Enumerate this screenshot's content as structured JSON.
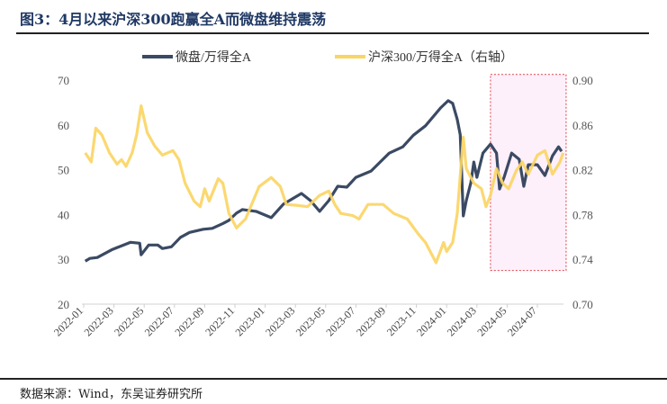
{
  "header": {
    "title": "图3：4月以来沪深300跑赢全A而微盘维持震荡"
  },
  "footer": {
    "source": "数据来源：Wind，东吴证券研究所"
  },
  "chart_data": {
    "type": "line",
    "title": "图3：4月以来沪深300跑赢全A而微盘维持震荡",
    "x_unit": "months since 2022-01",
    "x_tick_labels": [
      "2022-01",
      "2022-03",
      "2022-05",
      "2022-07",
      "2022-09",
      "2022-11",
      "2023-01",
      "2023-03",
      "2023-05",
      "2023-07",
      "2023-09",
      "2023-11",
      "2024-01",
      "2024-03",
      "2024-05",
      "2024-07"
    ],
    "y_left": {
      "ylim": [
        20,
        70
      ],
      "ticks": [
        "20",
        "30",
        "40",
        "50",
        "60",
        "70"
      ]
    },
    "y_right": {
      "ylim": [
        0.7,
        0.9
      ],
      "ticks": [
        "0.70",
        "0.74",
        "0.78",
        "0.82",
        "0.86",
        "0.90"
      ]
    },
    "legend_position": "top-center",
    "highlight_region": {
      "x_from": 26.9,
      "x_to": 31.9,
      "y_right_from": 0.73,
      "y_right_to": 0.905
    },
    "series": [
      {
        "name": "微盘/万得全A",
        "axis": "left",
        "color": "#3b4a63",
        "x": [
          0.1,
          0.4,
          0.9,
          1.9,
          2.5,
          3.1,
          3.7,
          3.8,
          4.3,
          4.9,
          5.2,
          5.8,
          6.4,
          7,
          7.9,
          8.5,
          9.2,
          9.6,
          10.1,
          10.5,
          11.4,
          12.4,
          13.2,
          14.4,
          15,
          15.6,
          16.2,
          16.8,
          17.4,
          18,
          19,
          19.6,
          20.2,
          21.1,
          21.8,
          22.6,
          23.6,
          24.1,
          24.4,
          24.7,
          24.9,
          25.1,
          25.3,
          25.6,
          25.8,
          26,
          26.4,
          26.9,
          27.3,
          27.5,
          27.8,
          28.3,
          28.8,
          29.1,
          29.4,
          30,
          30.5,
          31,
          31.4,
          31.6
        ],
        "y": [
          29.6,
          30.2,
          30.4,
          32.2,
          33,
          33.8,
          33.6,
          31,
          33.2,
          33.2,
          32.4,
          32.8,
          34.9,
          36,
          36.7,
          36.9,
          38,
          38.7,
          40.3,
          41.1,
          40.7,
          39.3,
          42.3,
          44.7,
          43.1,
          40.7,
          43.1,
          46.3,
          46.1,
          48.3,
          49.7,
          51.7,
          53.7,
          55.1,
          57.7,
          59.8,
          63.8,
          65.4,
          64.8,
          61.2,
          57.8,
          39.7,
          43.1,
          47.1,
          51.7,
          48.3,
          53.7,
          55.7,
          53.7,
          45.7,
          48.3,
          53.7,
          52.3,
          46.3,
          51.1,
          51.1,
          48.7,
          53.1,
          55.1,
          54.1
        ]
      },
      {
        "name": "沪深300/万得全A（右轴）",
        "axis": "right",
        "color": "#fbd564",
        "x": [
          0.1,
          0.5,
          0.8,
          1.2,
          1.7,
          2.2,
          2.5,
          2.8,
          3.2,
          3.5,
          3.8,
          4.2,
          4.7,
          5.2,
          5.9,
          6.3,
          6.7,
          7.3,
          7.7,
          8,
          8.3,
          8.9,
          9.2,
          9.6,
          10.1,
          10.7,
          11.6,
          12.4,
          13,
          13.4,
          14.2,
          14.8,
          15.6,
          16.2,
          16.6,
          17,
          17.8,
          18.2,
          18.8,
          19.8,
          20.5,
          21.4,
          22.1,
          22.6,
          23.3,
          23.8,
          24,
          24.4,
          24.7,
          25.1,
          25.3,
          25.8,
          26.3,
          26.6,
          26.9,
          27.3,
          27.7,
          28.1,
          28.6,
          29,
          29.4,
          30,
          30.5,
          31,
          31.5,
          31.7
        ],
        "y": [
          0.835,
          0.827,
          0.857,
          0.851,
          0.835,
          0.825,
          0.829,
          0.823,
          0.835,
          0.851,
          0.877,
          0.853,
          0.841,
          0.833,
          0.837,
          0.829,
          0.808,
          0.792,
          0.787,
          0.803,
          0.792,
          0.812,
          0.808,
          0.781,
          0.768,
          0.776,
          0.805,
          0.813,
          0.805,
          0.789,
          0.788,
          0.787,
          0.797,
          0.801,
          0.789,
          0.781,
          0.779,
          0.776,
          0.789,
          0.789,
          0.781,
          0.776,
          0.763,
          0.755,
          0.737,
          0.755,
          0.747,
          0.755,
          0.781,
          0.849,
          0.821,
          0.808,
          0.803,
          0.787,
          0.797,
          0.821,
          0.808,
          0.803,
          0.819,
          0.827,
          0.816,
          0.833,
          0.837,
          0.816,
          0.827,
          0.835
        ]
      }
    ]
  }
}
